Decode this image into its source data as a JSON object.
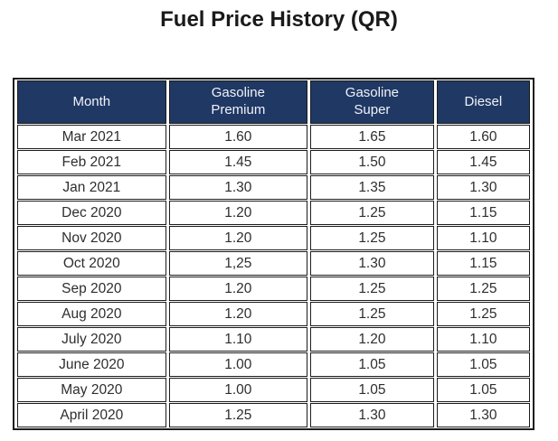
{
  "title": "Fuel Price History (QR)",
  "table": {
    "columns": [
      "Month",
      "Gasoline\nPremium",
      "Gasoline\nSuper",
      "Diesel"
    ],
    "rows": [
      [
        "Mar 2021",
        "1.60",
        "1.65",
        "1.60"
      ],
      [
        "Feb 2021",
        "1.45",
        "1.50",
        "1.45"
      ],
      [
        "Jan 2021",
        "1.30",
        "1.35",
        "1.30"
      ],
      [
        "Dec 2020",
        "1.20",
        "1.25",
        "1.15"
      ],
      [
        "Nov 2020",
        "1.20",
        "1.25",
        "1.10"
      ],
      [
        "Oct 2020",
        "1,25",
        "1.30",
        "1.15"
      ],
      [
        "Sep 2020",
        "1.20",
        "1.25",
        "1.25"
      ],
      [
        "Aug 2020",
        "1.20",
        "1.25",
        "1.25"
      ],
      [
        "July 2020",
        "1.10",
        "1.20",
        "1.10"
      ],
      [
        "June 2020",
        "1.00",
        "1.05",
        "1.05"
      ],
      [
        "May 2020",
        "1.00",
        "1.05",
        "1.05"
      ],
      [
        "April 2020",
        "1.25",
        "1.30",
        "1.30"
      ]
    ]
  },
  "colors": {
    "header_bg": "#1F3864",
    "header_text": "#F2F2F7",
    "border": "#1C1C1C",
    "body_text": "#2E2E2E",
    "page_bg": "#FFFFFF"
  }
}
